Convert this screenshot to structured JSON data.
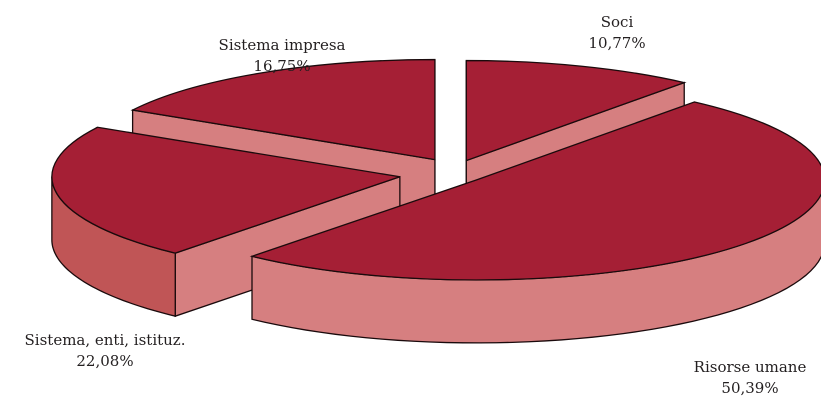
{
  "chart_data": {
    "type": "pie",
    "variant": "3d-exploded",
    "categories": [
      "Soci",
      "Risorse umane",
      "Sistema, enti, istituz.",
      "Sistema impresa"
    ],
    "values": [
      10.77,
      50.39,
      22.08,
      16.75
    ],
    "value_labels": [
      "10,77%",
      "50,39%",
      "22,08%",
      "16,75%"
    ],
    "colors": {
      "top": "#a51f35",
      "side": "#d67f80",
      "side_dark": "#c05556",
      "outline": "#1a0a0c"
    }
  }
}
